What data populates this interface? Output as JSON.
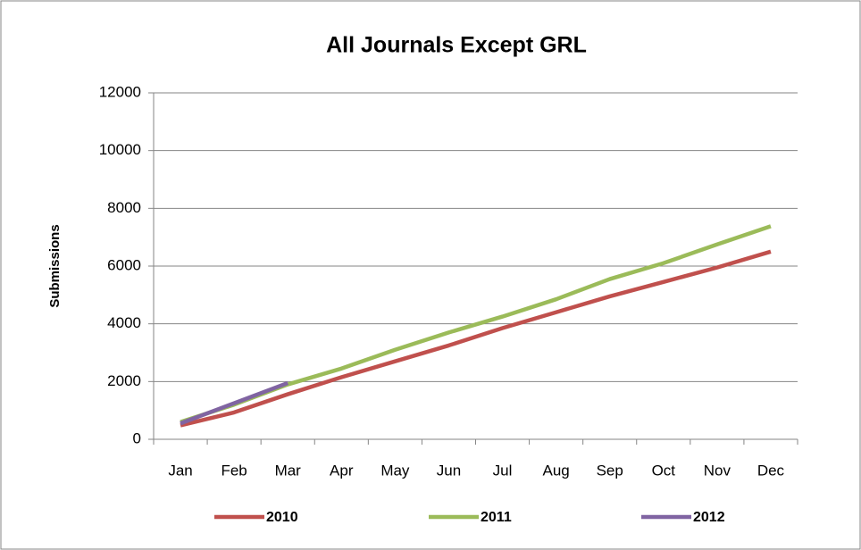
{
  "chart_data": {
    "type": "line",
    "title": "All Journals Except GRL",
    "y_label": "Submissions",
    "categories": [
      "Jan",
      "Feb",
      "Mar",
      "Apr",
      "May",
      "Jun",
      "Jul",
      "Aug",
      "Sep",
      "Oct",
      "Nov",
      "Dec"
    ],
    "series": [
      {
        "name": "2010",
        "color": "#c0504d",
        "values": [
          480,
          930,
          1560,
          2150,
          2700,
          3250,
          3850,
          4400,
          4950,
          5450,
          5950,
          6500
        ]
      },
      {
        "name": "2011",
        "color": "#9bbb59",
        "values": [
          600,
          1200,
          1900,
          2450,
          3100,
          3700,
          4250,
          4850,
          5550,
          6100,
          6750,
          7380
        ]
      },
      {
        "name": "2012",
        "color": "#8064a2",
        "values": [
          550,
          1250,
          1950,
          null,
          null,
          null,
          null,
          null,
          null,
          null,
          null,
          null
        ]
      }
    ],
    "ylim": [
      0,
      12000
    ],
    "yticks": [
      0,
      2000,
      4000,
      6000,
      8000,
      10000,
      12000
    ],
    "grid": true,
    "legend": "bottom"
  }
}
